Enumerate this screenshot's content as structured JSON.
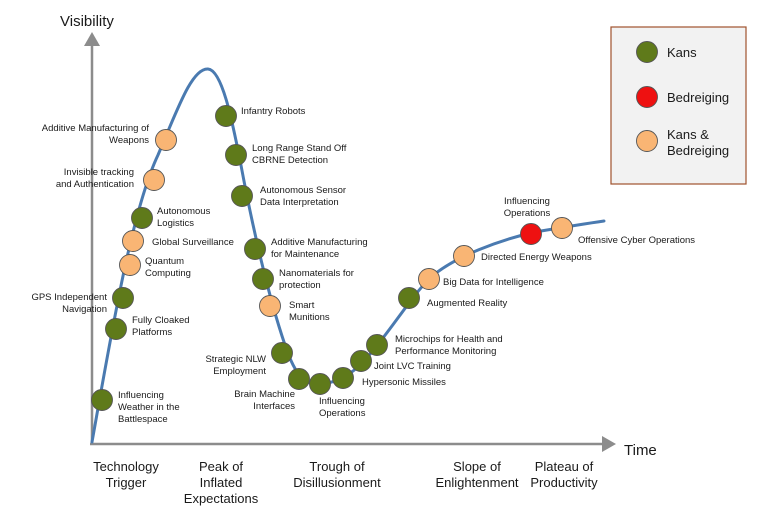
{
  "axes": {
    "y_title": "Visibility",
    "x_title": "Time",
    "axis_color": "#8c8c8c",
    "curve_color": "#4a7ab0"
  },
  "phases": [
    {
      "lines": [
        "Technology",
        "Trigger"
      ]
    },
    {
      "lines": [
        "Peak of",
        "Inflated",
        "Expectations"
      ]
    },
    {
      "lines": [
        "Trough of",
        "Disillusionment"
      ]
    },
    {
      "lines": [
        "Slope of",
        "Enlightenment"
      ]
    },
    {
      "lines": [
        "Plateau of",
        "Productivity"
      ]
    }
  ],
  "legend": {
    "background": "#f2f2f2",
    "border": "#a0522d",
    "items": [
      {
        "key": "kans",
        "lines": [
          "Kans"
        ],
        "color": "#5f7a1a"
      },
      {
        "key": "bedreiging",
        "lines": [
          "Bedreiging"
        ],
        "color": "#ee1111"
      },
      {
        "key": "both",
        "lines": [
          "Kans &",
          "Bedreiging"
        ],
        "color": "#f9b574"
      }
    ]
  },
  "items": [
    {
      "lines": [
        "Influencing",
        "Weather in the",
        "Battlespace"
      ],
      "type": "kans"
    },
    {
      "lines": [
        "Fully Cloaked",
        "Platforms"
      ],
      "type": "kans"
    },
    {
      "lines": [
        "GPS  Independent",
        "Navigation"
      ],
      "type": "kans"
    },
    {
      "lines": [
        "Quantum",
        "Computing"
      ],
      "type": "both"
    },
    {
      "lines": [
        "Global Surveillance"
      ],
      "type": "both"
    },
    {
      "lines": [
        "Autonomous",
        "Logistics"
      ],
      "type": "kans"
    },
    {
      "lines": [
        "Invisible tracking",
        "and Authentication"
      ],
      "type": "both"
    },
    {
      "lines": [
        "Additive Manufacturing of",
        "Weapons"
      ],
      "type": "both"
    },
    {
      "lines": [
        "Infantry Robots"
      ],
      "type": "kans"
    },
    {
      "lines": [
        "Long Range Stand Off",
        "CBRNE  Detection"
      ],
      "type": "kans"
    },
    {
      "lines": [
        "Autonomous Sensor",
        "Data Interpretation"
      ],
      "type": "kans"
    },
    {
      "lines": [
        "Additive Manufacturing",
        "for Maintenance"
      ],
      "type": "kans"
    },
    {
      "lines": [
        "Nanomaterials  for",
        "protection"
      ],
      "type": "kans"
    },
    {
      "lines": [
        "Smart",
        "Munitions"
      ],
      "type": "both"
    },
    {
      "lines": [
        "Strategic NLW",
        "Employment"
      ],
      "type": "kans"
    },
    {
      "lines": [
        "Brain Machine",
        "Interfaces"
      ],
      "type": "kans"
    },
    {
      "lines": [
        "Influencing",
        "Operations"
      ],
      "type": "kans"
    },
    {
      "lines": [
        "Hypersonic Missiles"
      ],
      "type": "kans"
    },
    {
      "lines": [
        "Joint LVC Training"
      ],
      "type": "kans"
    },
    {
      "lines": [
        "Microchips for Health and",
        "Performance Monitoring"
      ],
      "type": "kans"
    },
    {
      "lines": [
        "Augmented Reality"
      ],
      "type": "kans"
    },
    {
      "lines": [
        "Big Data for Intelligence"
      ],
      "type": "both"
    },
    {
      "lines": [
        "Directed Energy Weapons"
      ],
      "type": "both"
    },
    {
      "lines": [
        "Influencing",
        "Operations"
      ],
      "type": "bedreiging"
    },
    {
      "lines": [
        "Offensive Cyber Operations"
      ],
      "type": "both"
    }
  ]
}
